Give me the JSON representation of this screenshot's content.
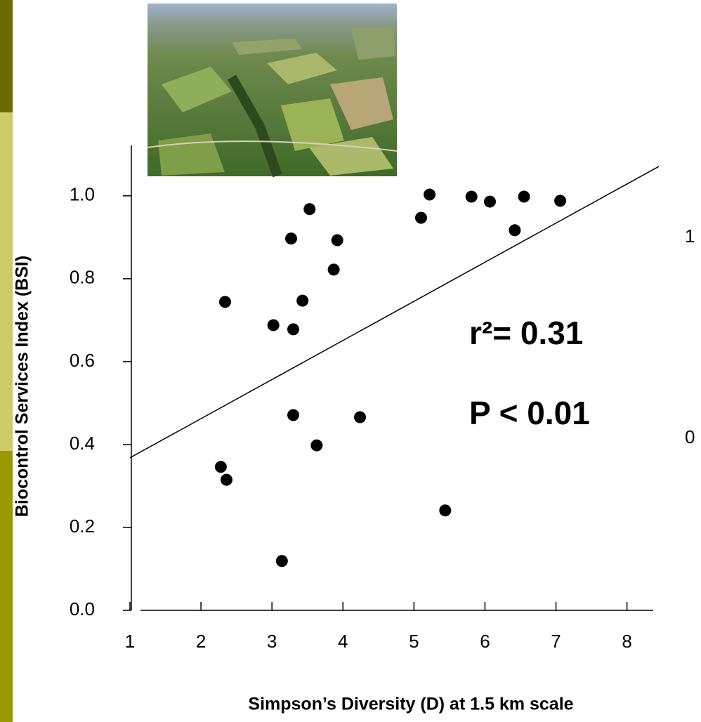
{
  "chart_data": {
    "type": "scatter",
    "x_label": "Simpson’s Diversity (D) at 1.5 km scale",
    "y_label": "Biocontrol Services Index (BSI)",
    "annotations": [
      "r²= 0.31",
      "P < 0.01"
    ],
    "side_labels": [
      "1",
      "0"
    ],
    "color": "#000000",
    "x": [
      2.34,
      2.28,
      2.36,
      3.02,
      3.27,
      3.3,
      3.3,
      3.53,
      3.43,
      3.63,
      3.14,
      3.87,
      3.92,
      4.24,
      5.1,
      5.22,
      5.44,
      5.81,
      6.07,
      6.42,
      6.55,
      7.06
    ],
    "values": [
      0.744,
      0.346,
      0.315,
      0.688,
      0.897,
      0.678,
      0.471,
      0.968,
      0.747,
      0.398,
      0.119,
      0.822,
      0.893,
      0.466,
      0.947,
      1.003,
      0.241,
      0.998,
      0.986,
      0.917,
      0.998,
      0.988
    ],
    "trendline": {
      "x": [
        1,
        8.45
      ],
      "y": [
        0.368,
        1.071
      ]
    },
    "xlim": [
      1,
      8.37
    ],
    "ylim": [
      0,
      1.12
    ],
    "xticks": [
      1,
      2,
      3,
      4,
      5,
      6,
      7,
      8
    ],
    "yticks": [
      {
        "value": 0,
        "label": "0.0"
      },
      0.2,
      0.4,
      0.6,
      0.8,
      {
        "value": 1,
        "label": "1.0"
      }
    ]
  }
}
